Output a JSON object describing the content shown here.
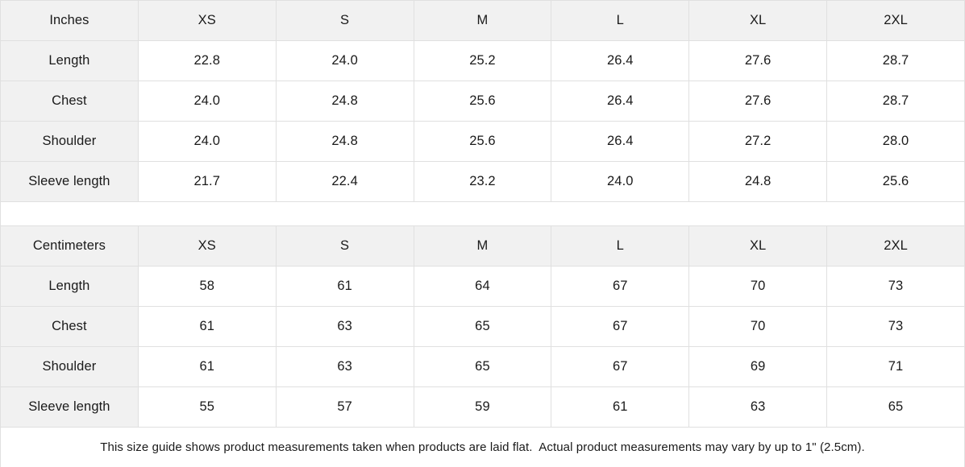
{
  "tables": [
    {
      "id": "inches",
      "unit_label": "Inches",
      "columns": [
        "XS",
        "S",
        "M",
        "L",
        "XL",
        "2XL"
      ],
      "rows": [
        {
          "label": "Length",
          "values": [
            "22.8",
            "24.0",
            "25.2",
            "26.4",
            "27.6",
            "28.7"
          ]
        },
        {
          "label": "Chest",
          "values": [
            "24.0",
            "24.8",
            "25.6",
            "26.4",
            "27.6",
            "28.7"
          ]
        },
        {
          "label": "Shoulder",
          "values": [
            "24.0",
            "24.8",
            "25.6",
            "26.4",
            "27.2",
            "28.0"
          ]
        },
        {
          "label": "Sleeve length",
          "values": [
            "21.7",
            "22.4",
            "23.2",
            "24.0",
            "24.8",
            "25.6"
          ]
        }
      ]
    },
    {
      "id": "centimeters",
      "unit_label": "Centimeters",
      "columns": [
        "XS",
        "S",
        "M",
        "L",
        "XL",
        "2XL"
      ],
      "rows": [
        {
          "label": "Length",
          "values": [
            "58",
            "61",
            "64",
            "67",
            "70",
            "73"
          ]
        },
        {
          "label": "Chest",
          "values": [
            "61",
            "63",
            "65",
            "67",
            "70",
            "73"
          ]
        },
        {
          "label": "Shoulder",
          "values": [
            "61",
            "63",
            "65",
            "67",
            "69",
            "71"
          ]
        },
        {
          "label": "Sleeve length",
          "values": [
            "55",
            "57",
            "59",
            "61",
            "63",
            "65"
          ]
        }
      ]
    }
  ],
  "note": "This size guide shows product measurements taken when products are laid flat.  Actual product measurements may vary by up to 1\" (2.5cm).",
  "colors": {
    "header_bg": "#f1f1f1",
    "border": "#e0e0e0",
    "text": "#1a1a1a",
    "background": "#ffffff"
  }
}
